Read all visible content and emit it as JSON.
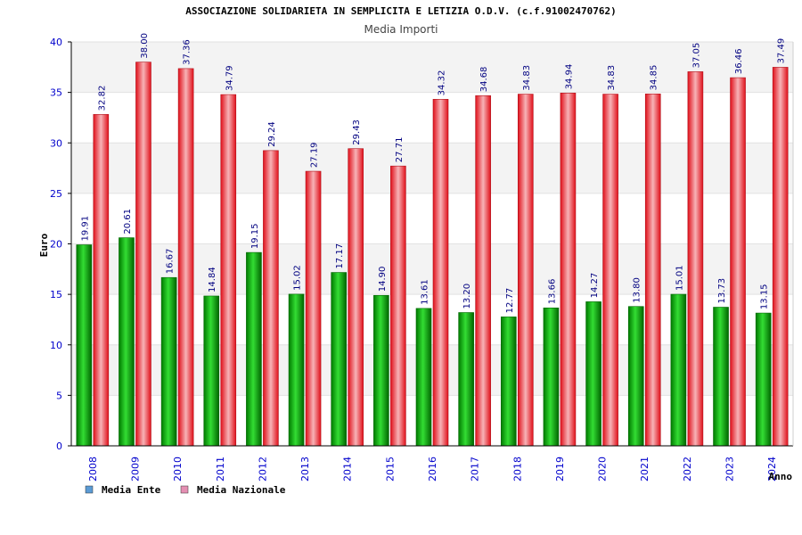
{
  "chart_data": {
    "type": "bar",
    "title": "ASSOCIAZIONE SOLIDARIETA IN SEMPLICITA E LETIZIA O.D.V. (c.f.91002470762)",
    "subtitle": "Media Importi",
    "xlabel": "Anno",
    "ylabel": "Euro",
    "ylim": [
      0,
      40
    ],
    "yticks": [
      "0",
      "5",
      "10",
      "15",
      "20",
      "25",
      "30",
      "35",
      "40"
    ],
    "grid": true,
    "legend_position": "bottom-left",
    "categories": [
      "2008",
      "2009",
      "2010",
      "2011",
      "2012",
      "2013",
      "2014",
      "2015",
      "2016",
      "2017",
      "2018",
      "2019",
      "2020",
      "2021",
      "2022",
      "2023",
      "2024"
    ],
    "series": [
      {
        "name": "Media Ente",
        "color": "#00a000",
        "legend_color": "#5b9bd5",
        "values": [
          19.91,
          20.61,
          16.67,
          14.84,
          19.15,
          15.02,
          17.17,
          14.9,
          13.61,
          13.2,
          12.77,
          13.66,
          14.27,
          13.8,
          15.01,
          13.73,
          13.15
        ],
        "labels": [
          "19.91",
          "20.61",
          "16.67",
          "14.84",
          "19.15",
          "15.02",
          "17.17",
          "14.90",
          "13.61",
          "13.20",
          "12.77",
          "13.66",
          "14.27",
          "13.80",
          "15.01",
          "13.73",
          "13.15"
        ]
      },
      {
        "name": "Media Nazionale",
        "color": "#e8222a",
        "legend_color": "#e58fb3",
        "values": [
          32.82,
          38.0,
          37.36,
          34.79,
          29.24,
          27.19,
          29.43,
          27.71,
          34.32,
          34.68,
          34.83,
          34.94,
          34.83,
          34.85,
          37.05,
          36.46,
          37.49
        ],
        "labels": [
          "32.82",
          "38.00",
          "37.36",
          "34.79",
          "29.24",
          "27.19",
          "29.43",
          "27.71",
          "34.32",
          "34.68",
          "34.83",
          "34.94",
          "34.83",
          "34.85",
          "37.05",
          "36.46",
          "37.49"
        ]
      }
    ]
  }
}
